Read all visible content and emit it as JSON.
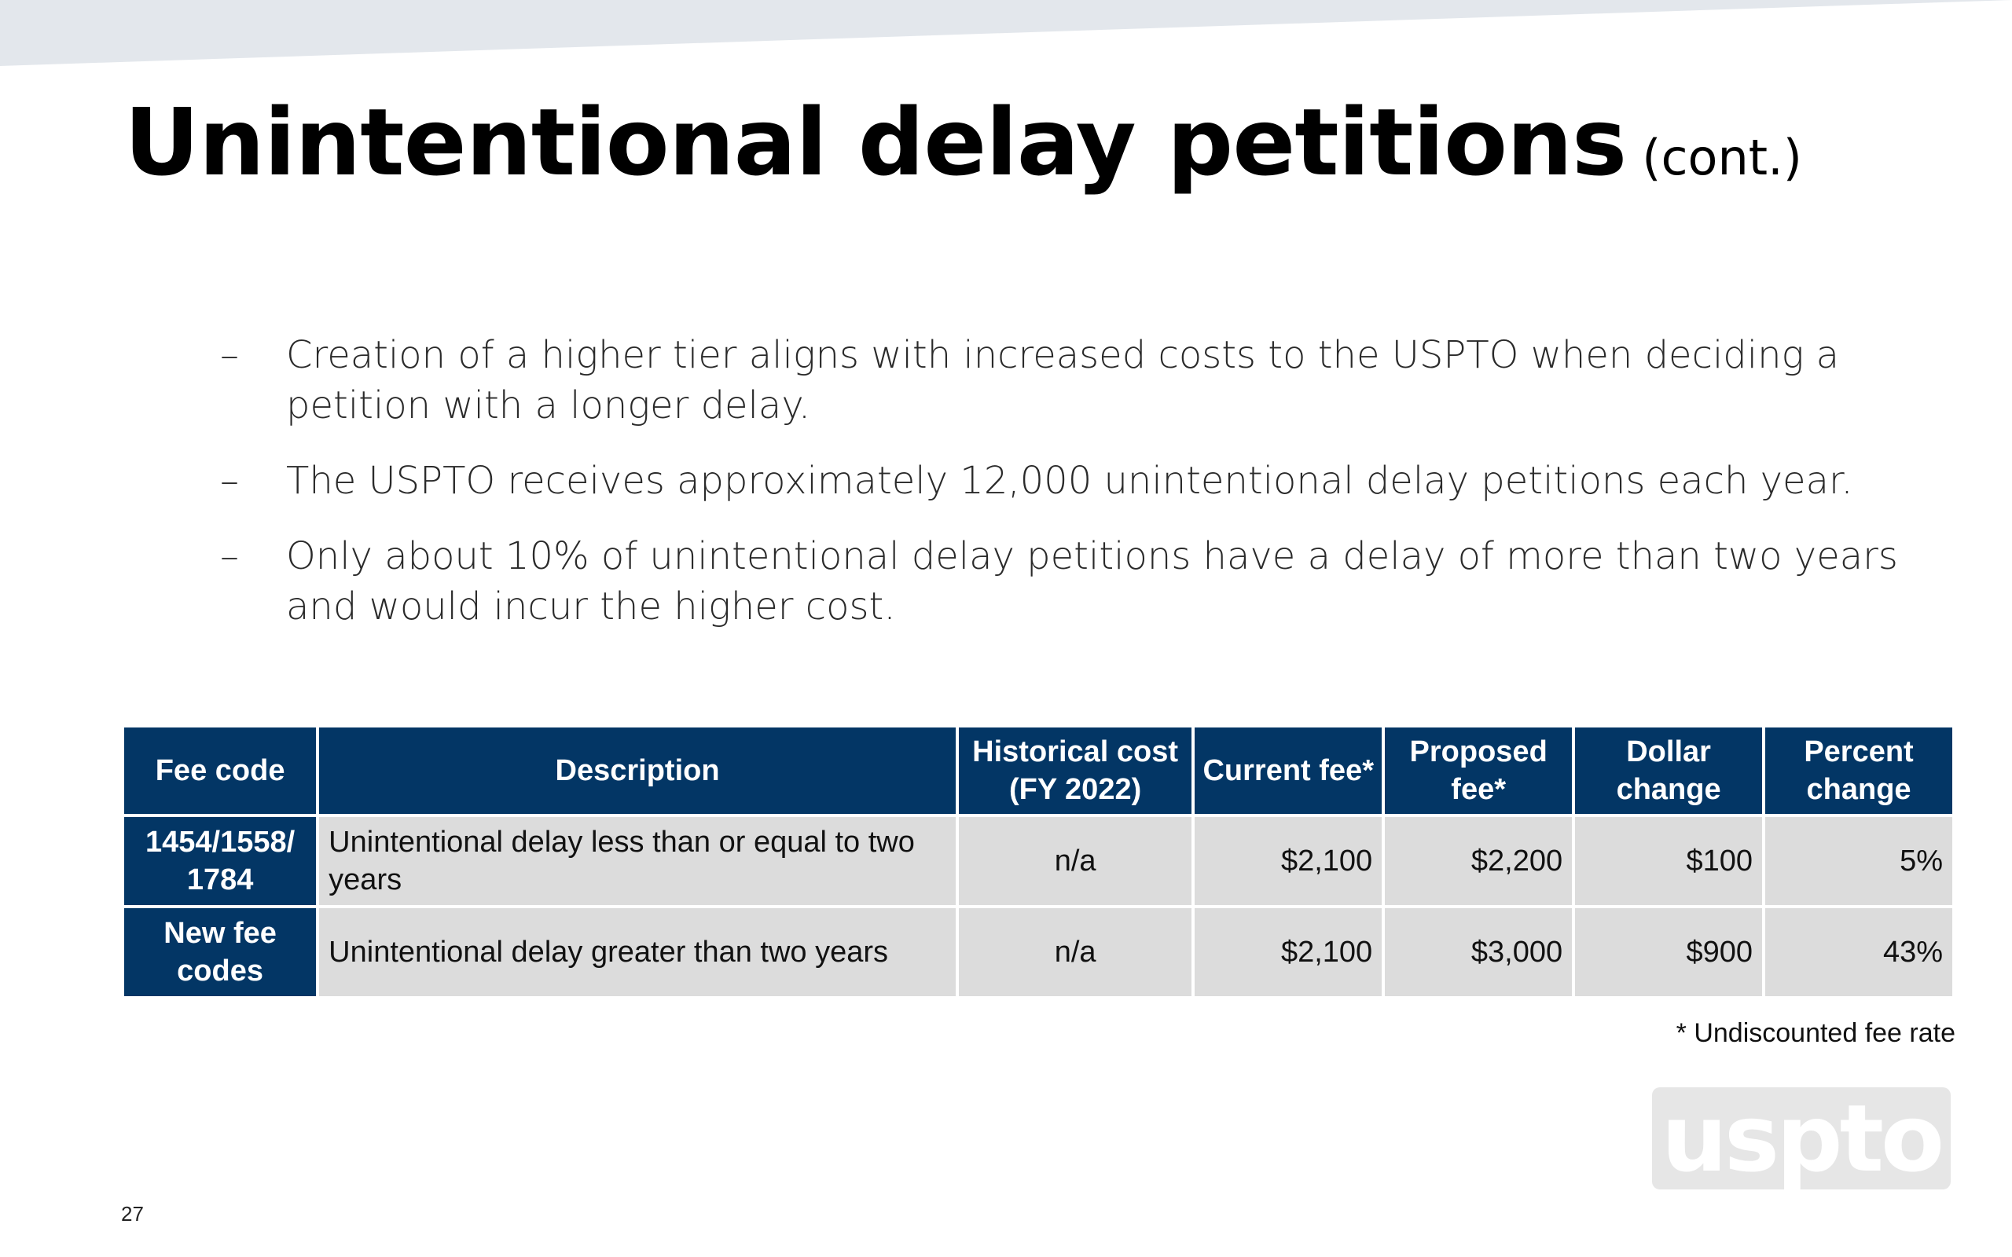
{
  "slide": {
    "title": "Unintentional delay petitions",
    "title_suffix": "(cont.)",
    "bullets": [
      {
        "marker": "–",
        "text": "Creation of a higher tier aligns with increased costs to the USPTO when deciding a petition with a longer delay."
      },
      {
        "marker": "–",
        "text": "The USPTO receives approximately 12,000 unintentional delay petitions each year."
      },
      {
        "marker": "–",
        "text": "Only about 10% of unintentional delay petitions have a delay of more than two years and would incur the higher cost."
      }
    ],
    "table": {
      "headers": [
        "Fee code",
        "Description",
        "Historical cost (FY 2022)",
        "Current fee*",
        "Proposed fee*",
        "Dollar change",
        "Percent change"
      ],
      "rows": [
        [
          "1454/1558/ 1784",
          "Unintentional delay less than or equal to two years",
          "n/a",
          "$2,100",
          "$2,200",
          "$100",
          "5%"
        ],
        [
          "New fee codes",
          "Unintentional delay greater than two years",
          "n/a",
          "$2,100",
          "$3,000",
          "$900",
          "43%"
        ]
      ]
    },
    "footnote": "* Undiscounted fee rate",
    "logo_text": "uspto",
    "page_number": "27",
    "colors": {
      "header_bg": "#033665",
      "cell_bg": "#dcdcdc",
      "top_band": "#e3e7ec"
    }
  }
}
